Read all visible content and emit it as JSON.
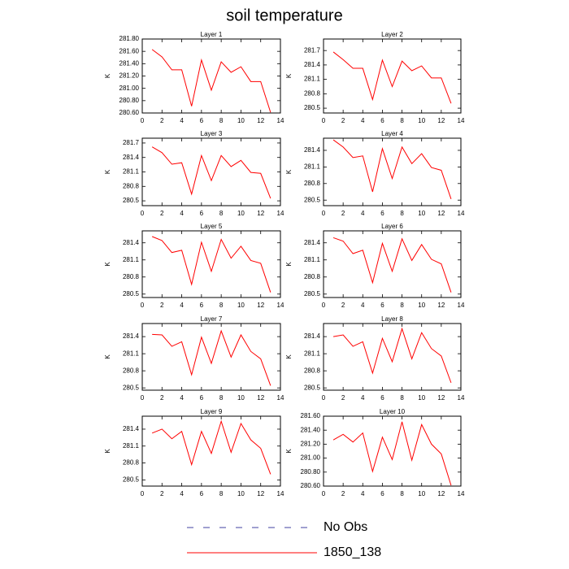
{
  "title": "soil temperature",
  "legend": [
    {
      "name": "No Obs",
      "color": "#4040a0",
      "dash": true
    },
    {
      "name": "1850_138",
      "color": "#ff0000",
      "dash": false
    }
  ],
  "chart_data": [
    {
      "type": "line",
      "title": "Layer 1",
      "ylabel": "K",
      "x": [
        1,
        2,
        3,
        4,
        5,
        6,
        7,
        8,
        9,
        10,
        11,
        12,
        13
      ],
      "values": [
        281.63,
        281.51,
        281.3,
        281.3,
        280.71,
        281.46,
        280.97,
        281.43,
        281.26,
        281.35,
        281.11,
        281.11,
        280.61
      ],
      "color": "#ff0000",
      "xlim": [
        0,
        14
      ],
      "xticks": [
        0,
        2,
        4,
        6,
        8,
        10,
        12,
        14
      ],
      "ylim": [
        280.6,
        281.8
      ],
      "yticks": [
        {
          "value": 280.6,
          "label": "280.60"
        },
        {
          "value": 280.8,
          "label": "280.80"
        },
        {
          "value": 281.0,
          "label": "281.00"
        },
        {
          "value": 281.2,
          "label": "281.20"
        },
        {
          "value": 281.4,
          "label": "281.40"
        },
        {
          "value": 281.6,
          "label": "281.60"
        },
        {
          "value": 281.8,
          "label": "281.80"
        }
      ]
    },
    {
      "type": "line",
      "title": "Layer 2",
      "ylabel": "K",
      "x": [
        1,
        2,
        3,
        4,
        5,
        6,
        7,
        8,
        9,
        10,
        11,
        12,
        13
      ],
      "values": [
        281.67,
        281.51,
        281.33,
        281.33,
        280.68,
        281.5,
        280.95,
        281.48,
        281.28,
        281.38,
        281.13,
        281.13,
        280.6
      ],
      "color": "#ff0000",
      "xlim": [
        0,
        14
      ],
      "xticks": [
        0,
        2,
        4,
        6,
        8,
        10,
        12,
        14
      ],
      "ylim": [
        280.4,
        281.94
      ],
      "yticks": [
        280.5,
        280.8,
        281.1,
        281.4,
        281.7
      ]
    },
    {
      "type": "line",
      "title": "Layer 3",
      "ylabel": "K",
      "x": [
        1,
        2,
        3,
        4,
        5,
        6,
        7,
        8,
        9,
        10,
        11,
        12,
        13
      ],
      "values": [
        281.62,
        281.5,
        281.26,
        281.29,
        280.64,
        281.44,
        280.92,
        281.44,
        281.21,
        281.34,
        281.09,
        281.07,
        280.55
      ],
      "color": "#ff0000",
      "xlim": [
        0,
        14
      ],
      "xticks": [
        0,
        2,
        4,
        6,
        8,
        10,
        12,
        14
      ],
      "ylim": [
        280.4,
        281.8
      ],
      "yticks": [
        280.5,
        280.8,
        281.1,
        281.4,
        281.7
      ]
    },
    {
      "type": "line",
      "title": "Layer 4",
      "ylabel": "K",
      "x": [
        1,
        2,
        3,
        4,
        5,
        6,
        7,
        8,
        9,
        10,
        11,
        12,
        13
      ],
      "values": [
        281.59,
        281.46,
        281.27,
        281.3,
        280.65,
        281.43,
        280.89,
        281.46,
        281.16,
        281.34,
        281.09,
        281.04,
        280.52
      ],
      "color": "#ff0000",
      "xlim": [
        0,
        14
      ],
      "xticks": [
        0,
        2,
        4,
        6,
        8,
        10,
        12,
        14
      ],
      "ylim": [
        280.4,
        281.62
      ],
      "yticks": [
        280.5,
        280.8,
        281.1,
        281.4
      ]
    },
    {
      "type": "line",
      "title": "Layer 5",
      "ylabel": "K",
      "x": [
        1,
        2,
        3,
        4,
        5,
        6,
        7,
        8,
        9,
        10,
        11,
        12,
        13
      ],
      "values": [
        281.51,
        281.44,
        281.23,
        281.27,
        280.67,
        281.41,
        280.9,
        281.46,
        281.13,
        281.34,
        281.09,
        281.04,
        280.53
      ],
      "color": "#ff0000",
      "xlim": [
        0,
        14
      ],
      "xticks": [
        0,
        2,
        4,
        6,
        8,
        10,
        12,
        14
      ],
      "ylim": [
        280.44,
        281.61
      ],
      "yticks": [
        280.5,
        280.8,
        281.1,
        281.4
      ]
    },
    {
      "type": "line",
      "title": "Layer 6",
      "ylabel": "K",
      "x": [
        1,
        2,
        3,
        4,
        5,
        6,
        7,
        8,
        9,
        10,
        11,
        12,
        13
      ],
      "values": [
        281.49,
        281.43,
        281.21,
        281.27,
        280.7,
        281.39,
        280.9,
        281.47,
        281.09,
        281.37,
        281.11,
        281.03,
        280.53
      ],
      "color": "#ff0000",
      "xlim": [
        0,
        14
      ],
      "xticks": [
        0,
        2,
        4,
        6,
        8,
        10,
        12,
        14
      ],
      "ylim": [
        280.44,
        281.61
      ],
      "yticks": [
        280.5,
        280.8,
        281.1,
        281.4
      ]
    },
    {
      "type": "line",
      "title": "Layer 7",
      "ylabel": "K",
      "x": [
        1,
        2,
        3,
        4,
        5,
        6,
        7,
        8,
        9,
        10,
        11,
        12,
        13
      ],
      "values": [
        281.44,
        281.43,
        281.23,
        281.31,
        280.73,
        281.39,
        280.93,
        281.5,
        281.04,
        281.43,
        281.14,
        281.01,
        280.54
      ],
      "color": "#ff0000",
      "xlim": [
        0,
        14
      ],
      "xticks": [
        0,
        2,
        4,
        6,
        8,
        10,
        12,
        14
      ],
      "ylim": [
        280.46,
        281.63
      ],
      "yticks": [
        280.5,
        280.8,
        281.1,
        281.4
      ]
    },
    {
      "type": "line",
      "title": "Layer 8",
      "ylabel": "K",
      "x": [
        1,
        2,
        3,
        4,
        5,
        6,
        7,
        8,
        9,
        10,
        11,
        12,
        13
      ],
      "values": [
        281.4,
        281.43,
        281.23,
        281.31,
        280.76,
        281.37,
        280.96,
        281.54,
        281.01,
        281.47,
        281.19,
        281.06,
        280.59
      ],
      "color": "#ff0000",
      "xlim": [
        0,
        14
      ],
      "xticks": [
        0,
        2,
        4,
        6,
        8,
        10,
        12,
        14
      ],
      "ylim": [
        280.46,
        281.63
      ],
      "yticks": [
        280.5,
        280.8,
        281.1,
        281.4
      ]
    },
    {
      "type": "line",
      "title": "Layer 9",
      "ylabel": "K",
      "x": [
        1,
        2,
        3,
        4,
        5,
        6,
        7,
        8,
        9,
        10,
        11,
        12,
        13
      ],
      "values": [
        281.33,
        281.4,
        281.23,
        281.36,
        280.77,
        281.36,
        280.97,
        281.54,
        280.99,
        281.5,
        281.21,
        281.06,
        280.6
      ],
      "color": "#ff0000",
      "xlim": [
        0,
        14
      ],
      "xticks": [
        0,
        2,
        4,
        6,
        8,
        10,
        12,
        14
      ],
      "ylim": [
        280.39,
        281.63
      ],
      "yticks": [
        280.5,
        280.8,
        281.1,
        281.4
      ]
    },
    {
      "type": "line",
      "title": "Layer 10",
      "ylabel": "K",
      "x": [
        1,
        2,
        3,
        4,
        5,
        6,
        7,
        8,
        9,
        10,
        11,
        12,
        13
      ],
      "values": [
        281.26,
        281.34,
        281.23,
        281.36,
        280.81,
        281.3,
        280.98,
        281.52,
        280.97,
        281.48,
        281.2,
        281.06,
        280.61
      ],
      "color": "#ff0000",
      "xlim": [
        0,
        14
      ],
      "xticks": [
        0,
        2,
        4,
        6,
        8,
        10,
        12,
        14
      ],
      "ylim": [
        280.6,
        281.6
      ],
      "yticks": [
        {
          "value": 280.6,
          "label": "280.60"
        },
        {
          "value": 280.8,
          "label": "280.80"
        },
        {
          "value": 281.0,
          "label": "281.00"
        },
        {
          "value": 281.2,
          "label": "281.20"
        },
        {
          "value": 281.4,
          "label": "281.40"
        },
        {
          "value": 281.6,
          "label": "281.60"
        }
      ]
    }
  ]
}
